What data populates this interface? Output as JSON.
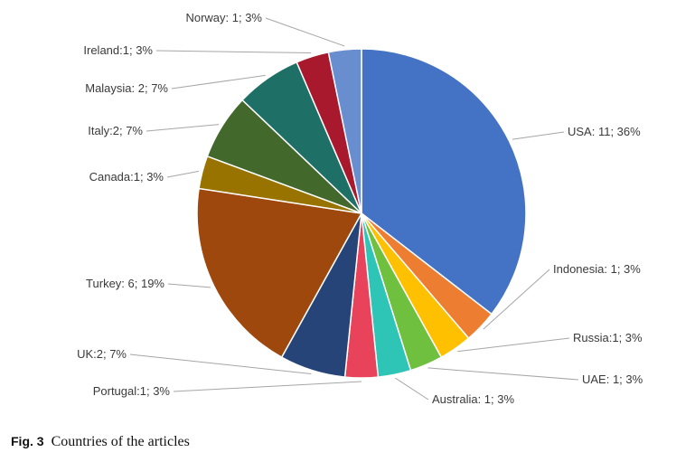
{
  "chart_data": {
    "type": "pie",
    "title": "",
    "slices": [
      {
        "label": "USA: 11; 36%",
        "value": 11,
        "percent": 36,
        "color": "#4472C4"
      },
      {
        "label": "Indonesia: 1; 3%",
        "value": 1,
        "percent": 3,
        "color": "#ED7D31"
      },
      {
        "label": "Russia:1; 3%",
        "value": 1,
        "percent": 3,
        "color": "#FFC000"
      },
      {
        "label": "UAE: 1; 3%",
        "value": 1,
        "percent": 3,
        "color": "#70C040"
      },
      {
        "label": "Australia: 1; 3%",
        "value": 1,
        "percent": 3,
        "color": "#2EC4B6"
      },
      {
        "label": "Portugal:1; 3%",
        "value": 1,
        "percent": 3,
        "color": "#E8435A"
      },
      {
        "label": "UK:2; 7%",
        "value": 2,
        "percent": 7,
        "color": "#264478"
      },
      {
        "label": "Turkey: 6; 19%",
        "value": 6,
        "percent": 19,
        "color": "#9E480E"
      },
      {
        "label": "Canada:1; 3%",
        "value": 1,
        "percent": 3,
        "color": "#997300"
      },
      {
        "label": "Italy:2; 7%",
        "value": 2,
        "percent": 7,
        "color": "#43682B"
      },
      {
        "label": "Malaysia: 2; 7%",
        "value": 2,
        "percent": 7,
        "color": "#1E7066"
      },
      {
        "label": "Ireland:1; 3%",
        "value": 1,
        "percent": 3,
        "color": "#A8192E"
      },
      {
        "label": "Norway: 1; 3%",
        "value": 1,
        "percent": 3,
        "color": "#698ED0"
      }
    ]
  },
  "caption": {
    "fig_label": "Fig. 3",
    "text": "Countries of the articles"
  }
}
